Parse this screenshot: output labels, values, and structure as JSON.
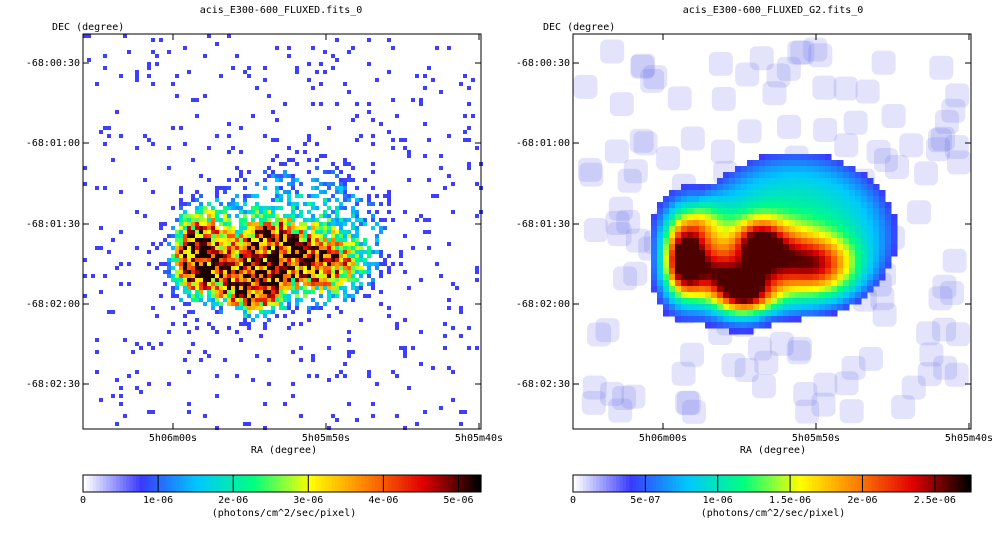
{
  "chart_data": [
    {
      "type": "heatmap",
      "title": "acis_E300-600_FLUXED.fits_0",
      "xlabel": "RA (degree)",
      "ylabel": "DEC (degree)",
      "x_ticks": [
        "5h06m00s",
        "5h05m50s",
        "5h05m40s"
      ],
      "y_ticks": [
        "-68:00:30",
        "-68:01:00",
        "-68:01:30",
        "-68:02:00",
        "-68:02:30"
      ],
      "colorbar": {
        "label": "(photons/cm^2/sec/pixel)",
        "ticks": [
          {
            "label": "0",
            "value": 0
          },
          {
            "label": "1e-06",
            "value": 1e-06
          },
          {
            "label": "2e-06",
            "value": 2e-06
          },
          {
            "label": "3e-06",
            "value": 3e-06
          },
          {
            "label": "4e-06",
            "value": 4e-06
          },
          {
            "label": "5e-06",
            "value": 5e-06
          }
        ],
        "range": [
          0,
          5.3e-06
        ]
      },
      "colormap": [
        "#ffffff",
        "#3a3aff",
        "#00c8ff",
        "#00ff80",
        "#ffff00",
        "#ff8000",
        "#e00000",
        "#000000"
      ],
      "style": "binned (unsmoothed counts)"
    },
    {
      "type": "heatmap",
      "title": "acis_E300-600_FLUXED_G2.fits_0",
      "xlabel": "RA (degree)",
      "ylabel": "DEC (degree)",
      "x_ticks": [
        "5h06m00s",
        "5h05m50s",
        "5h05m40s"
      ],
      "y_ticks": [
        "-68:00:30",
        "-68:01:00",
        "-68:01:30",
        "-68:02:00",
        "-68:02:30"
      ],
      "colorbar": {
        "label": "(photons/cm^2/sec/pixel)",
        "ticks": [
          {
            "label": "0",
            "value": 0
          },
          {
            "label": "5e-07",
            "value": 5e-07
          },
          {
            "label": "1e-06",
            "value": 1e-06
          },
          {
            "label": "1.5e-06",
            "value": 1.5e-06
          },
          {
            "label": "2e-06",
            "value": 2e-06
          },
          {
            "label": "2.5e-06",
            "value": 2.5e-06
          }
        ],
        "range": [
          0,
          2.75e-06
        ]
      },
      "colormap": [
        "#ffffff",
        "#3a3aff",
        "#00c8ff",
        "#00ff80",
        "#ffff00",
        "#ff8000",
        "#e00000",
        "#000000"
      ],
      "style": "gaussian smoothed"
    }
  ]
}
